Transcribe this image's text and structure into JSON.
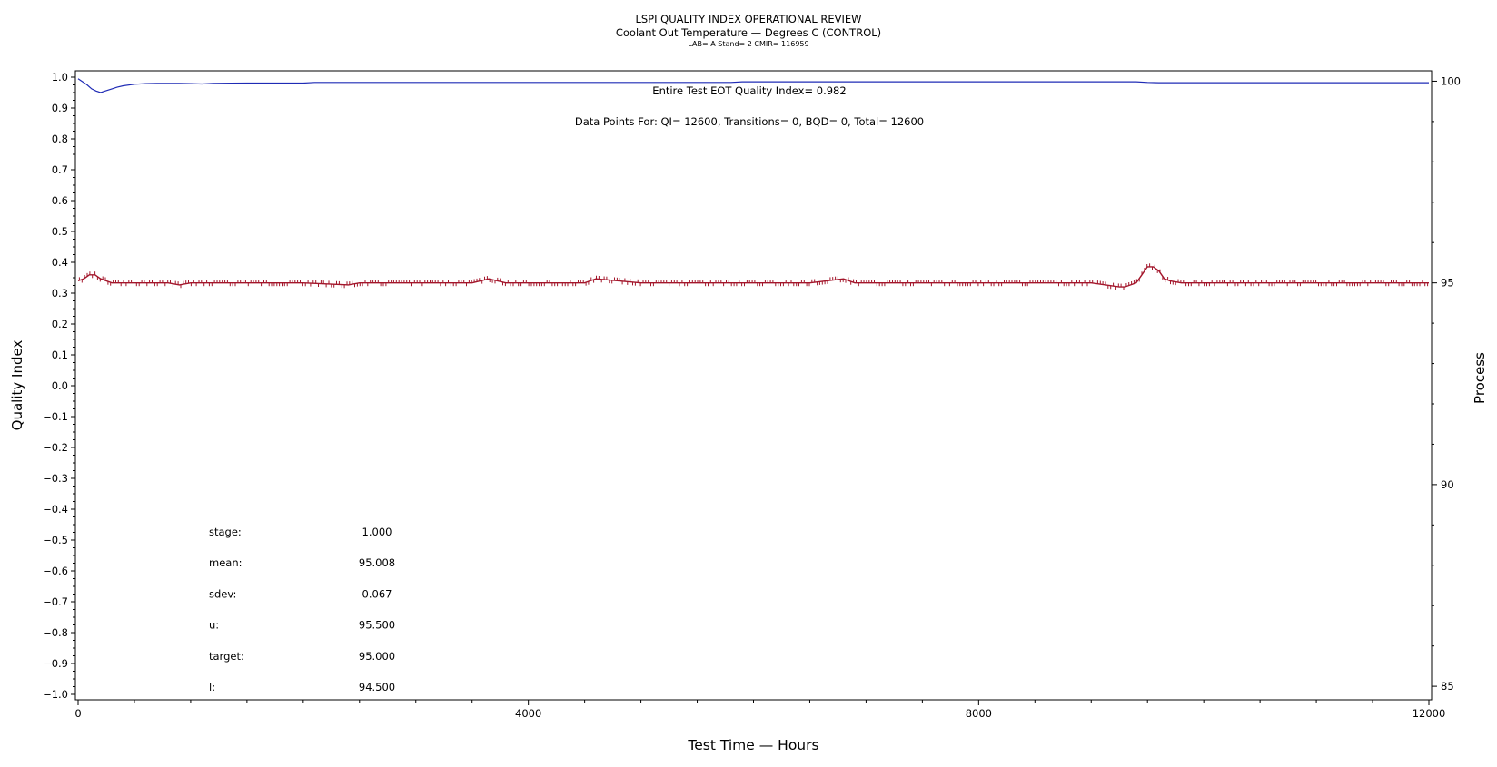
{
  "chart_data": {
    "type": "line",
    "title": "LSPI QUALITY INDEX OPERATIONAL REVIEW",
    "subtitle": "Coolant Out Temperature — Degrees C (CONTROL)",
    "subtitle2": "LAB= A Stand= 2 CMIR= 116959",
    "xlabel": "Test Time — Hours",
    "ylabel_left": "Quality Index",
    "ylabel_right": "Process",
    "xlim": [
      0,
      12000
    ],
    "x_ticks": [
      "0",
      "4000",
      "8000",
      "12000"
    ],
    "ylim_left": [
      -1.0,
      1.0
    ],
    "y_ticks_left": [
      "1.0",
      "0.9",
      "0.8",
      "0.7",
      "0.6",
      "0.5",
      "0.4",
      "0.3",
      "0.2",
      "0.1",
      "0.0",
      "−0.1",
      "−0.2",
      "−0.3",
      "−0.4",
      "−0.5",
      "−0.6",
      "−0.7",
      "−0.8",
      "−0.9",
      "−1.0"
    ],
    "ylim_right": [
      84.8,
      100.1
    ],
    "y_ticks_right": [
      "100",
      "95",
      "90",
      "85"
    ],
    "grid": false,
    "annotations": {
      "qi_text": "Entire Test EOT Quality Index=   0.982",
      "points_text": "Data Points For: QI= 12600, Transitions=     0, BQD=     0, Total= 12600"
    },
    "stats": [
      {
        "label": "stage:",
        "value": "1.000"
      },
      {
        "label": "mean:",
        "value": "95.008"
      },
      {
        "label": "sdev:",
        "value": "0.067"
      },
      {
        "label": "u:",
        "value": "95.500"
      },
      {
        "label": "target:",
        "value": "95.000"
      },
      {
        "label": "l:",
        "value": "94.500"
      }
    ],
    "series": [
      {
        "axis": "left",
        "color": "#1f2bb5",
        "x": [
          0,
          40,
          80,
          120,
          160,
          200,
          240,
          300,
          350,
          400,
          500,
          600,
          700,
          800,
          900,
          1000,
          1100,
          1200,
          1500,
          2000,
          2100,
          3000,
          4000,
          5000,
          5800,
          5900,
          7000,
          8000,
          9000,
          9400,
          9500,
          9600,
          10000,
          11000,
          12000
        ],
        "y": [
          0.995,
          0.985,
          0.975,
          0.962,
          0.955,
          0.95,
          0.955,
          0.962,
          0.968,
          0.972,
          0.977,
          0.979,
          0.98,
          0.98,
          0.98,
          0.979,
          0.978,
          0.98,
          0.981,
          0.981,
          0.983,
          0.983,
          0.983,
          0.983,
          0.983,
          0.985,
          0.985,
          0.985,
          0.985,
          0.985,
          0.983,
          0.982,
          0.982,
          0.982,
          0.982
        ]
      },
      {
        "axis": "right",
        "color": "#a3162b",
        "x": [
          0,
          50,
          100,
          150,
          200,
          300,
          500,
          800,
          900,
          1000,
          1500,
          2000,
          2400,
          2500,
          3000,
          3500,
          3650,
          3800,
          4000,
          4500,
          4600,
          5000,
          5500,
          6000,
          6500,
          6800,
          6900,
          7000,
          7500,
          8000,
          8500,
          9000,
          9250,
          9300,
          9400,
          9450,
          9500,
          9550,
          9600,
          9650,
          9700,
          9800,
          10000,
          10500,
          11000,
          11500,
          12000
        ],
        "y": [
          95.05,
          95.1,
          95.2,
          95.2,
          95.1,
          95.0,
          95.0,
          95.0,
          94.95,
          95.0,
          95.0,
          95.0,
          94.95,
          95.0,
          95.0,
          95.0,
          95.1,
          95.0,
          95.0,
          95.0,
          95.1,
          95.0,
          95.0,
          95.0,
          95.0,
          95.1,
          95.0,
          95.0,
          95.0,
          95.0,
          95.0,
          95.0,
          94.9,
          94.9,
          95.0,
          95.2,
          95.4,
          95.4,
          95.3,
          95.1,
          95.05,
          95.0,
          95.0,
          95.0,
          95.0,
          95.0,
          95.0
        ]
      }
    ]
  }
}
